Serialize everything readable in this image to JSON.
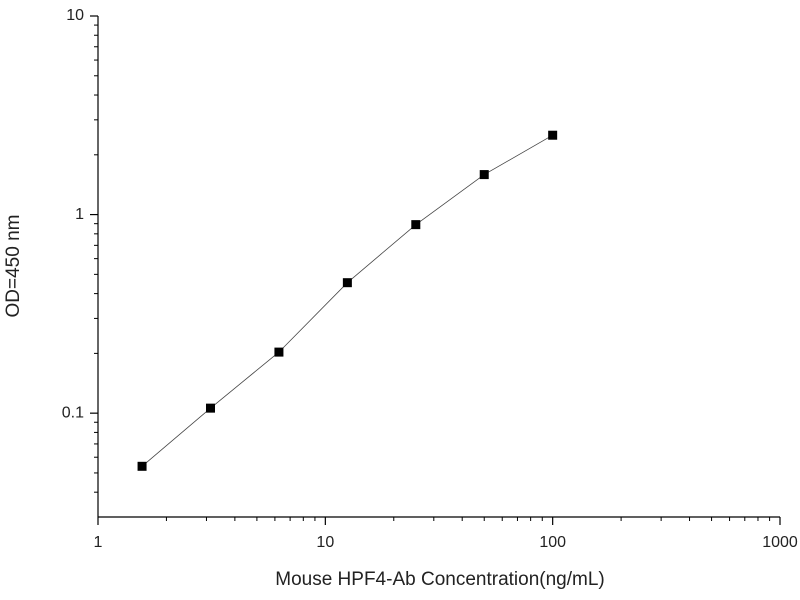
{
  "chart_data": {
    "type": "line",
    "x_label": "Mouse HPF4-Ab Concentration(ng/mL)",
    "y_label": "OD=450 nm",
    "x": [
      1.5625,
      3.125,
      6.25,
      12.5,
      25,
      50,
      100
    ],
    "values": [
      0.054,
      0.106,
      0.203,
      0.454,
      0.89,
      1.59,
      2.51
    ],
    "color": "#000000",
    "xlim": [
      1,
      1000
    ],
    "xticks": [
      1,
      10,
      100,
      1000
    ],
    "ylim": [
      0.03,
      10
    ],
    "yticks": [
      0.1,
      1,
      10
    ],
    "xscale": "log",
    "yscale": "log",
    "markers": true
  }
}
